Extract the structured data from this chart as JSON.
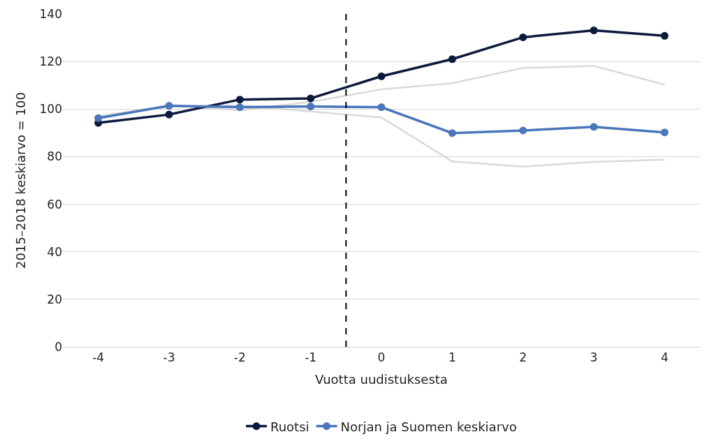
{
  "chart_data": {
    "type": "line",
    "xlabel": "Vuotta uudistuksesta",
    "ylabel": "2015–2018 keskiarvo = 100",
    "x": [
      -4,
      -3,
      -2,
      -1,
      0,
      1,
      2,
      3,
      4
    ],
    "series": [
      {
        "color": "#d9d9d9",
        "marker": "none",
        "values": [
          97,
          101.5,
          99.5,
          103,
          108.3,
          110.9,
          117.3,
          118.1,
          110.3
        ]
      },
      {
        "color": "#d9d9d9",
        "marker": "none",
        "values": [
          97,
          101,
          101.5,
          99,
          96.5,
          78,
          75.8,
          77.8,
          78.7
        ]
      },
      {
        "name": "Ruotsi",
        "color": "#0c1a3d",
        "values": [
          94.2,
          97.7,
          104,
          104.5,
          113.8,
          121,
          130.2,
          133.1,
          130.8
        ]
      },
      {
        "name": "Norjan ja Suomen keskiarvo",
        "color": "#4a76bb",
        "values": [
          96.2,
          101.4,
          100.8,
          101.1,
          100.8,
          89.9,
          91,
          92.5,
          90.2
        ]
      }
    ],
    "xlim": [
      -4.5,
      4.5
    ],
    "xticks": [
      -4,
      -3,
      -2,
      -1,
      0,
      1,
      2,
      3,
      4
    ],
    "ylim": [
      0,
      140
    ],
    "yticks": [
      0,
      20,
      40,
      60,
      80,
      100,
      120,
      140
    ],
    "ref_lines": [
      {
        "axis": "x",
        "value": -0.5,
        "color": "#000000",
        "line_style": "dashed"
      }
    ],
    "grid": "y",
    "legend": "bottom",
    "marker": "circle"
  }
}
